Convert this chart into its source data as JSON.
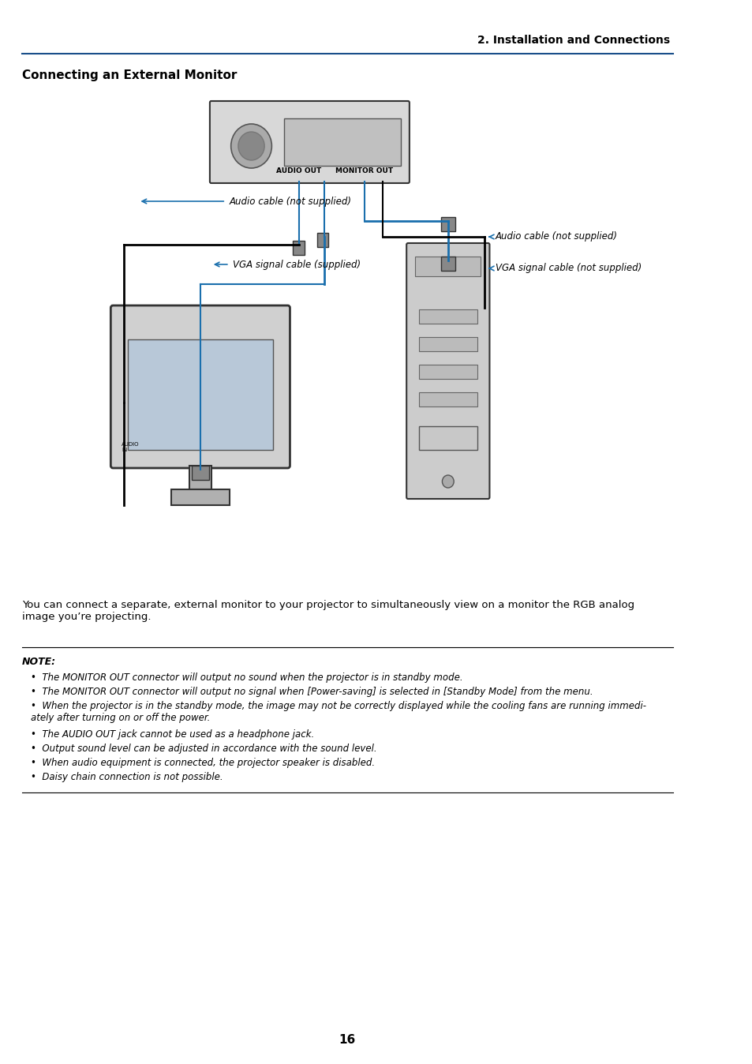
{
  "bg_color": "#ffffff",
  "header_line_color": "#1a4f8a",
  "header_text": "2. Installation and Connections",
  "section_title": "Connecting an External Monitor",
  "body_text": "You can connect a separate, external monitor to your projector to simultaneously view on a monitor the RGB analog\nimage you’re projecting.",
  "note_label": "NOTE:",
  "note_items": [
    "The MONITOR OUT connector will output no sound when the projector is in standby mode.",
    "The MONITOR OUT connector will output no signal when [Power-saving] is selected in [Standby Mode] from the menu.",
    "When the projector is in the standby mode, the image may not be correctly displayed while the cooling fans are running immedi-\nately after turning on or off the power.",
    "The AUDIO OUT jack cannot be used as a headphone jack.",
    "Output sound level can be adjusted in accordance with the sound level.",
    "When audio equipment is connected, the projector speaker is disabled.",
    "Daisy chain connection is not possible."
  ],
  "diagram_labels": {
    "audio_out": "AUDIO OUT",
    "monitor_out": "MONITOR OUT",
    "audio_cable_left": "Audio cable (not supplied)",
    "vga_cable_left": "VGA signal cable (supplied)",
    "audio_cable_right": "Audio cable (not supplied)",
    "vga_cable_right": "VGA signal cable (not supplied)"
  },
  "page_number": "16",
  "line_color_blue": "#1a6fad",
  "line_color_black": "#000000"
}
